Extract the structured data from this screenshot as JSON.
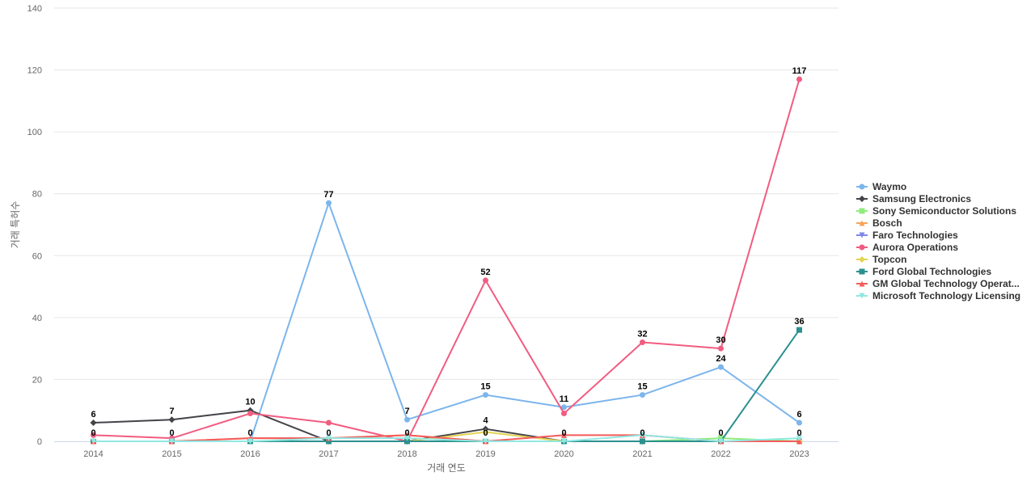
{
  "chart_data": {
    "type": "line",
    "title": "",
    "xlabel": "거래 연도",
    "ylabel": "거래 특허수",
    "categories": [
      "2014",
      "2015",
      "2016",
      "2017",
      "2018",
      "2019",
      "2020",
      "2021",
      "2022",
      "2023"
    ],
    "ylim": [
      0,
      140
    ],
    "yticks": [
      0,
      20,
      40,
      60,
      80,
      100,
      120,
      140
    ],
    "grid": true,
    "legend_position": "right",
    "series": [
      {
        "name": "Waymo",
        "color": "#7cb5ec",
        "marker": "circle",
        "values": [
          0,
          0,
          0,
          77,
          7,
          15,
          11,
          15,
          24,
          6
        ]
      },
      {
        "name": "Samsung Electronics",
        "color": "#434348",
        "marker": "diamond",
        "values": [
          6,
          7,
          10,
          0,
          0,
          4,
          0,
          0,
          0,
          0
        ]
      },
      {
        "name": "Sony Semiconductor Solutions",
        "color": "#90ed7d",
        "marker": "square",
        "values": [
          0,
          0,
          0,
          0,
          0,
          0,
          0,
          0,
          1,
          0
        ]
      },
      {
        "name": "Bosch",
        "color": "#f7a35c",
        "marker": "triangle",
        "values": [
          0,
          0,
          1,
          1,
          2,
          0,
          0,
          0,
          0,
          0
        ]
      },
      {
        "name": "Faro Technologies",
        "color": "#8085e9",
        "marker": "triangle-down",
        "values": [
          0,
          0,
          0,
          0,
          0,
          0,
          0,
          0,
          0,
          0
        ]
      },
      {
        "name": "Aurora Operations",
        "color": "#f15c80",
        "marker": "circle",
        "values": [
          2,
          1,
          9,
          6,
          0,
          52,
          9,
          32,
          30,
          117
        ]
      },
      {
        "name": "Topcon",
        "color": "#e4d354",
        "marker": "diamond",
        "values": [
          0,
          0,
          0,
          0,
          0,
          3,
          0,
          0,
          0,
          0
        ]
      },
      {
        "name": "Ford Global Technologies",
        "color": "#2b908f",
        "marker": "square",
        "values": [
          0,
          0,
          0,
          0,
          0,
          0,
          0,
          0,
          0,
          36
        ]
      },
      {
        "name": "GM Global Technology Operat...",
        "color": "#f45b5b",
        "marker": "triangle",
        "values": [
          0,
          0,
          1,
          1,
          2,
          0,
          2,
          2,
          0,
          0
        ]
      },
      {
        "name": "Microsoft Technology Licensing",
        "color": "#91e8e1",
        "marker": "triangle-down",
        "values": [
          0,
          0,
          0,
          1,
          1,
          0,
          0,
          2,
          0,
          1
        ]
      }
    ],
    "data_labels": [
      {
        "series": "Samsung Electronics",
        "category": "2014",
        "text": "6"
      },
      {
        "series": "Samsung Electronics",
        "category": "2015",
        "text": "7"
      },
      {
        "series": "Samsung Electronics",
        "category": "2016",
        "text": "10"
      },
      {
        "series": "Waymo",
        "category": "2017",
        "text": "77"
      },
      {
        "series": "Waymo",
        "category": "2018",
        "text": "7"
      },
      {
        "series": "Aurora Operations",
        "category": "2019",
        "text": "52"
      },
      {
        "series": "Samsung Electronics",
        "category": "2019",
        "text": "4"
      },
      {
        "series": "Waymo",
        "category": "2019",
        "text": "15"
      },
      {
        "series": "Waymo",
        "category": "2020",
        "text": "11"
      },
      {
        "series": "Aurora Operations",
        "category": "2021",
        "text": "32"
      },
      {
        "series": "Waymo",
        "category": "2021",
        "text": "15"
      },
      {
        "series": "Aurora Operations",
        "category": "2022",
        "text": "30"
      },
      {
        "series": "Waymo",
        "category": "2022",
        "text": "24"
      },
      {
        "series": "Aurora Operations",
        "category": "2023",
        "text": "117"
      },
      {
        "series": "Ford Global Technologies",
        "category": "2023",
        "text": "36"
      },
      {
        "series": "Waymo",
        "category": "2023",
        "text": "6"
      },
      {
        "series": "Faro Technologies",
        "category": "2014",
        "text": "0"
      },
      {
        "series": "Faro Technologies",
        "category": "2015",
        "text": "0"
      },
      {
        "series": "Faro Technologies",
        "category": "2016",
        "text": "0"
      },
      {
        "series": "Faro Technologies",
        "category": "2017",
        "text": "0"
      },
      {
        "series": "Faro Technologies",
        "category": "2018",
        "text": "0"
      },
      {
        "series": "Faro Technologies",
        "category": "2019",
        "text": "0"
      },
      {
        "series": "Faro Technologies",
        "category": "2020",
        "text": "0"
      },
      {
        "series": "Faro Technologies",
        "category": "2021",
        "text": "0"
      },
      {
        "series": "Faro Technologies",
        "category": "2022",
        "text": "0"
      },
      {
        "series": "Faro Technologies",
        "category": "2023",
        "text": "0"
      }
    ]
  }
}
